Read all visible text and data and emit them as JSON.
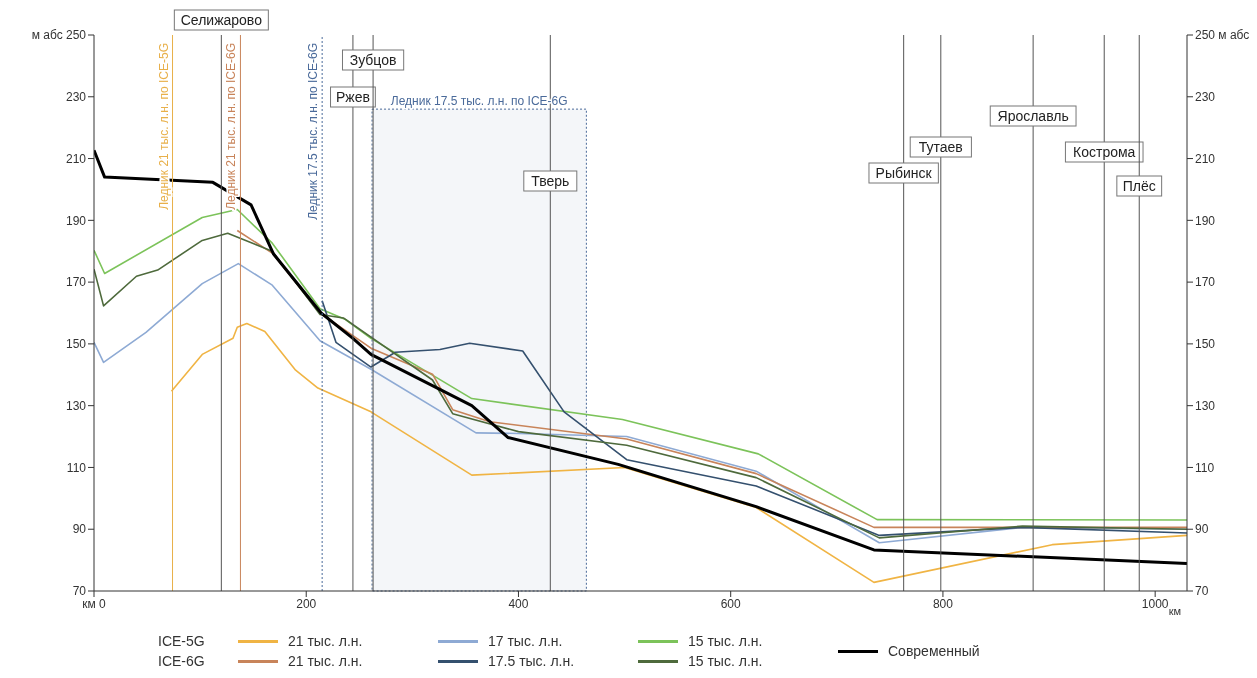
{
  "chart_data": {
    "type": "line",
    "xlabel": "км",
    "xlim": [
      0,
      1030
    ],
    "xticks": [
      {
        "value": 0,
        "label": "км 0"
      },
      200,
      400,
      600,
      800,
      1000
    ],
    "ylim": [
      70,
      250
    ],
    "yticks": [
      70,
      90,
      110,
      130,
      150,
      170,
      190,
      210,
      230,
      {
        "value": 250,
        "label": "м абс 250"
      }
    ],
    "y2lim": [
      70,
      250
    ],
    "y2ticks": [
      70,
      90,
      110,
      130,
      150,
      170,
      190,
      210,
      230,
      {
        "value": 250,
        "label": "250 м абс"
      }
    ],
    "legend": "bottom",
    "marker": "none",
    "annotations": [
      "ICE-5G",
      "ICE-6G"
    ],
    "series": [
      {
        "name": "21 тыс. л.н.",
        "color": "#f0b444",
        "x": [
          73,
          102,
          131,
          135,
          144,
          161,
          190,
          211,
          261,
          356,
          500,
          624,
          735,
          903,
          1030
        ],
        "values": [
          134.7,
          146.6,
          151.8,
          155.4,
          156.6,
          154,
          141.5,
          135.7,
          128,
          107.5,
          110,
          97,
          72.8,
          85,
          88
        ]
      },
      {
        "name": "17 тыс. л.н.",
        "color": "#8eaad4",
        "x": [
          0,
          9,
          49,
          102,
          136,
          168,
          213,
          261,
          360,
          400,
          502,
          624,
          740,
          875,
          1030
        ],
        "values": [
          150.5,
          144,
          153.7,
          169.5,
          176,
          169,
          151,
          141.8,
          121.2,
          121,
          120,
          108.8,
          85.6,
          90.6,
          90
        ]
      },
      {
        "name": "15 тыс. л.н.",
        "color": "#7cc35a",
        "x": [
          0,
          10,
          102,
          135,
          168,
          213,
          237,
          261,
          356,
          498,
          626,
          738,
          1030
        ],
        "values": [
          180.3,
          172.8,
          190.9,
          193.5,
          182.6,
          161.4,
          157.9,
          151.8,
          132.3,
          125.5,
          114.4,
          93.1,
          93
        ]
      },
      {
        "name": "21 тыс. л.н.",
        "color": "#c8845a",
        "x": [
          135,
          168,
          213,
          261,
          319,
          338,
          373,
          502,
          624,
          735,
          1030
        ],
        "values": [
          186.7,
          179.4,
          160,
          148.6,
          140.2,
          128.7,
          124.8,
          119.2,
          108,
          90.6,
          90.6
        ]
      },
      {
        "name": "17.5 тыс. л.н.",
        "color": "#34506e",
        "x": [
          215,
          228,
          261,
          284,
          326,
          354,
          404,
          443,
          502,
          624,
          740,
          875,
          1030
        ],
        "values": [
          164,
          150.5,
          142.5,
          147.3,
          148.2,
          150.2,
          147.7,
          128,
          112.5,
          104,
          88,
          90.6,
          88.8
        ]
      },
      {
        "name": "15 тыс. л.н.",
        "color": "#4e6a3c",
        "x": [
          0,
          9,
          40,
          60,
          102,
          126,
          168,
          213,
          235,
          319,
          338,
          400,
          502,
          624,
          740,
          875,
          1030
        ],
        "values": [
          174.2,
          162.3,
          171.9,
          173.9,
          183.5,
          185.8,
          180,
          159.5,
          158.4,
          138.3,
          127.4,
          121.6,
          117.2,
          106.7,
          87.2,
          91,
          90
        ]
      },
      {
        "name": "Современный",
        "color": "#000000",
        "x": [
          0,
          10,
          112,
          148,
          169,
          214,
          244,
          261,
          356,
          390,
          494,
          624,
          735,
          1030
        ],
        "values": [
          212.7,
          204,
          202.3,
          195,
          179.2,
          160,
          151.8,
          146.6,
          130,
          119.7,
          111,
          97.3,
          83.3,
          78.9
        ]
      }
    ],
    "ref_lines": [
      {
        "axis": "x",
        "value": 120,
        "label": "Селижарово",
        "color": "#555555"
      },
      {
        "axis": "x",
        "value": 244,
        "label": "Ржев",
        "color": "#555555"
      },
      {
        "axis": "x",
        "value": 263,
        "label": "Зубцов",
        "color": "#555555"
      },
      {
        "axis": "x",
        "value": 430,
        "label": "Тверь",
        "color": "#555555"
      },
      {
        "axis": "x",
        "value": 763,
        "label": "Рыбинск",
        "color": "#555555"
      },
      {
        "axis": "x",
        "value": 798,
        "label": "Тутаев",
        "color": "#555555"
      },
      {
        "axis": "x",
        "value": 885,
        "label": "Ярославль",
        "color": "#555555"
      },
      {
        "axis": "x",
        "value": 952,
        "label": "Кострома",
        "color": "#555555"
      },
      {
        "axis": "x",
        "value": 985,
        "label": "Плёс",
        "color": "#555555"
      },
      {
        "axis": "x",
        "value": 74,
        "label": "Ледник 21 тыс. л.н. по ICE-5G",
        "color": "#e8b04a",
        "line_style": "solid"
      },
      {
        "axis": "x",
        "value": 138,
        "label": "Ледник 21 тыс. л.н. по ICE-6G",
        "color": "#c8845a",
        "line_style": "solid"
      },
      {
        "axis": "x",
        "value": 215,
        "label": "Ледник 17.5 тыс. л.н. по ICE-6G",
        "color": "#4a6a9a",
        "line_style": "dotted"
      }
    ],
    "bands": [
      {
        "axis": "x",
        "from": 262,
        "to": 464,
        "label": "Ледник 17.5 тыс. л.н. по ICE-6G",
        "color": "#4a6a9a"
      }
    ]
  }
}
